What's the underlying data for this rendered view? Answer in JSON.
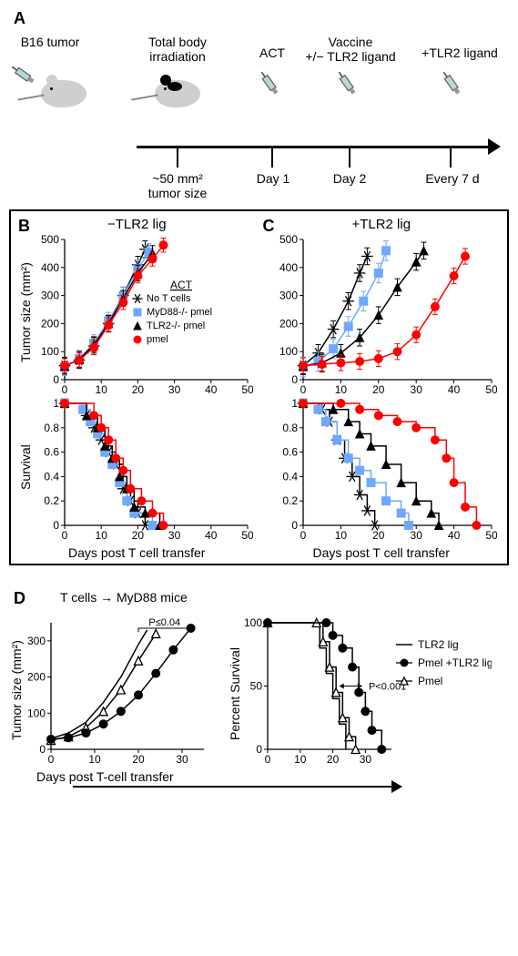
{
  "panelA": {
    "label": "A",
    "items": [
      {
        "title": "B16 tumor"
      },
      {
        "title": "Total body\nirradiation"
      },
      {
        "title": "ACT"
      },
      {
        "title": "Vaccine\n+/− TLR2 ligand"
      },
      {
        "title": "+TLR2 ligand"
      }
    ],
    "ticks": [
      "~50 mm²\ntumor size",
      "Day 1",
      "Day 2",
      "Every 7 d"
    ]
  },
  "panelB": {
    "label": "B",
    "title": "−TLR2 lig",
    "x_label": "Days post T cell transfer",
    "y_label_top": "Tumor size  (mm²)",
    "y_label_bot": "Survival",
    "x_ticks": [
      0,
      10,
      20,
      30,
      40,
      50
    ],
    "y_ticks_top": [
      0,
      100,
      200,
      300,
      400,
      500
    ],
    "y_ticks_bot": [
      0,
      0.2,
      0.4,
      0.6,
      0.8,
      1
    ],
    "legend": {
      "title": "ACT",
      "items": [
        {
          "label": "No T cells",
          "marker": "star",
          "color": "#000000"
        },
        {
          "label": "MyD88-/- pmel",
          "marker": "square",
          "color": "#6fa8ff"
        },
        {
          "label": "TLR2-/- pmel",
          "marker": "triangle",
          "color": "#000000"
        },
        {
          "label": "pmel",
          "marker": "circle",
          "color": "#ff0000"
        }
      ]
    },
    "tumor_series": {
      "no_t": {
        "color": "#000000",
        "marker": "star",
        "pts": [
          [
            0,
            50
          ],
          [
            4,
            70
          ],
          [
            8,
            120
          ],
          [
            12,
            200
          ],
          [
            16,
            300
          ],
          [
            20,
            410
          ],
          [
            22,
            465
          ]
        ],
        "err": 30
      },
      "myd88": {
        "color": "#6fa8ff",
        "marker": "square",
        "pts": [
          [
            0,
            45
          ],
          [
            4,
            75
          ],
          [
            8,
            130
          ],
          [
            12,
            210
          ],
          [
            16,
            300
          ],
          [
            20,
            395
          ],
          [
            23,
            455
          ]
        ],
        "err": 30
      },
      "tlr2": {
        "color": "#000000",
        "marker": "triangle",
        "pts": [
          [
            0,
            48
          ],
          [
            4,
            72
          ],
          [
            8,
            125
          ],
          [
            12,
            200
          ],
          [
            16,
            290
          ],
          [
            20,
            380
          ],
          [
            24,
            450
          ]
        ],
        "err": 28
      },
      "pmel": {
        "color": "#ff0000",
        "marker": "circle",
        "pts": [
          [
            0,
            50
          ],
          [
            4,
            70
          ],
          [
            8,
            115
          ],
          [
            12,
            195
          ],
          [
            16,
            275
          ],
          [
            20,
            370
          ],
          [
            24,
            430
          ],
          [
            27,
            480
          ]
        ],
        "err": 25
      }
    },
    "survival_series": {
      "no_t": {
        "color": "#000000",
        "marker": "star",
        "pts": [
          [
            0,
            1
          ],
          [
            6,
            0.9
          ],
          [
            8,
            0.8
          ],
          [
            10,
            0.7
          ],
          [
            12,
            0.6
          ],
          [
            14,
            0.5
          ],
          [
            16,
            0.3
          ],
          [
            18,
            0.2
          ],
          [
            20,
            0.1
          ],
          [
            22,
            0
          ]
        ]
      },
      "myd88": {
        "color": "#6fa8ff",
        "marker": "square",
        "pts": [
          [
            0,
            1
          ],
          [
            5,
            0.95
          ],
          [
            7,
            0.85
          ],
          [
            9,
            0.75
          ],
          [
            11,
            0.6
          ],
          [
            13,
            0.5
          ],
          [
            15,
            0.35
          ],
          [
            17,
            0.2
          ],
          [
            19,
            0.1
          ],
          [
            24,
            0
          ]
        ]
      },
      "tlr2": {
        "color": "#000000",
        "marker": "triangle",
        "pts": [
          [
            0,
            1
          ],
          [
            6,
            0.9
          ],
          [
            9,
            0.8
          ],
          [
            11,
            0.65
          ],
          [
            13,
            0.55
          ],
          [
            15,
            0.4
          ],
          [
            17,
            0.3
          ],
          [
            19,
            0.15
          ],
          [
            22,
            0.1
          ],
          [
            26,
            0
          ]
        ]
      },
      "pmel": {
        "color": "#ff0000",
        "marker": "circle",
        "pts": [
          [
            0,
            1
          ],
          [
            8,
            0.9
          ],
          [
            10,
            0.8
          ],
          [
            12,
            0.7
          ],
          [
            14,
            0.55
          ],
          [
            16,
            0.45
          ],
          [
            18,
            0.3
          ],
          [
            21,
            0.2
          ],
          [
            24,
            0.1
          ],
          [
            27,
            0
          ]
        ]
      }
    }
  },
  "panelC": {
    "label": "C",
    "title": "+TLR2 lig",
    "x_label": "Days post T cell transfer",
    "x_ticks": [
      0,
      10,
      20,
      30,
      40,
      50
    ],
    "y_ticks_top": [
      0,
      100,
      200,
      300,
      400,
      500
    ],
    "y_ticks_bot": [
      0,
      0.2,
      0.4,
      0.6,
      0.8,
      1
    ],
    "tumor_series": {
      "no_t": {
        "color": "#000000",
        "marker": "star",
        "pts": [
          [
            0,
            50
          ],
          [
            4,
            95
          ],
          [
            8,
            180
          ],
          [
            12,
            280
          ],
          [
            15,
            380
          ],
          [
            17,
            440
          ]
        ],
        "err": 30
      },
      "myd88": {
        "color": "#6fa8ff",
        "marker": "square",
        "pts": [
          [
            0,
            45
          ],
          [
            4,
            65
          ],
          [
            8,
            110
          ],
          [
            12,
            190
          ],
          [
            16,
            280
          ],
          [
            20,
            380
          ],
          [
            22,
            460
          ]
        ],
        "err": 35
      },
      "tlr2": {
        "color": "#000000",
        "marker": "triangle",
        "pts": [
          [
            0,
            48
          ],
          [
            5,
            60
          ],
          [
            10,
            95
          ],
          [
            15,
            150
          ],
          [
            20,
            230
          ],
          [
            25,
            330
          ],
          [
            30,
            420
          ],
          [
            32,
            460
          ]
        ],
        "err": 30
      },
      "pmel": {
        "color": "#ff0000",
        "marker": "circle",
        "pts": [
          [
            0,
            50
          ],
          [
            5,
            55
          ],
          [
            10,
            60
          ],
          [
            15,
            65
          ],
          [
            20,
            75
          ],
          [
            25,
            100
          ],
          [
            30,
            160
          ],
          [
            35,
            260
          ],
          [
            40,
            370
          ],
          [
            43,
            440
          ]
        ],
        "err": 28
      }
    },
    "survival_series": {
      "no_t": {
        "color": "#000000",
        "marker": "star",
        "pts": [
          [
            0,
            1
          ],
          [
            5,
            0.95
          ],
          [
            7,
            0.85
          ],
          [
            9,
            0.7
          ],
          [
            11,
            0.55
          ],
          [
            13,
            0.4
          ],
          [
            15,
            0.25
          ],
          [
            17,
            0.12
          ],
          [
            19,
            0
          ]
        ]
      },
      "myd88": {
        "color": "#6fa8ff",
        "marker": "square",
        "pts": [
          [
            0,
            1
          ],
          [
            4,
            0.95
          ],
          [
            6,
            0.85
          ],
          [
            9,
            0.7
          ],
          [
            12,
            0.55
          ],
          [
            15,
            0.45
          ],
          [
            18,
            0.35
          ],
          [
            22,
            0.2
          ],
          [
            26,
            0.1
          ],
          [
            28,
            0
          ]
        ]
      },
      "tlr2": {
        "color": "#000000",
        "marker": "triangle",
        "pts": [
          [
            0,
            1
          ],
          [
            8,
            0.95
          ],
          [
            12,
            0.85
          ],
          [
            15,
            0.75
          ],
          [
            18,
            0.65
          ],
          [
            22,
            0.5
          ],
          [
            26,
            0.35
          ],
          [
            30,
            0.2
          ],
          [
            34,
            0.1
          ],
          [
            36,
            0
          ]
        ]
      },
      "pmel": {
        "color": "#ff0000",
        "marker": "circle",
        "pts": [
          [
            0,
            1
          ],
          [
            10,
            1
          ],
          [
            15,
            0.95
          ],
          [
            20,
            0.9
          ],
          [
            25,
            0.85
          ],
          [
            30,
            0.8
          ],
          [
            35,
            0.7
          ],
          [
            38,
            0.55
          ],
          [
            40,
            0.35
          ],
          [
            43,
            0.15
          ],
          [
            46,
            0
          ]
        ]
      }
    }
  },
  "panelD": {
    "label": "D",
    "header": "T cells → MyD88 mice",
    "pvalue_tumor": "P≤0.04",
    "pvalue_surv": "P<0.001",
    "x_label": "Days post T-cell transfer",
    "y_label_left": "Tumor size  (mm²)",
    "y_label_right": "Percent Survival",
    "x_ticks_left": [
      0,
      10,
      20,
      30
    ],
    "y_ticks_left": [
      0,
      100,
      200,
      300
    ],
    "x_ticks_right": [
      0,
      10,
      20,
      30
    ],
    "y_ticks_right": [
      0,
      50,
      100
    ],
    "legend": [
      {
        "label": "TLR2 lig",
        "marker": "line",
        "color": "#000000"
      },
      {
        "label": "Pmel +TLR2 lig",
        "marker": "circle",
        "color": "#000000"
      },
      {
        "label": "Pmel",
        "marker": "open-triangle",
        "color": "#000000"
      }
    ],
    "tumor_series": {
      "tlr2lig": {
        "color": "#000000",
        "marker": "line",
        "pts": [
          [
            0,
            30
          ],
          [
            4,
            45
          ],
          [
            8,
            75
          ],
          [
            12,
            130
          ],
          [
            16,
            200
          ],
          [
            20,
            290
          ],
          [
            22,
            330
          ]
        ]
      },
      "pmel": {
        "color": "#000000",
        "marker": "open-triangle",
        "pts": [
          [
            0,
            25
          ],
          [
            4,
            35
          ],
          [
            8,
            60
          ],
          [
            12,
            105
          ],
          [
            16,
            165
          ],
          [
            20,
            245
          ],
          [
            24,
            320
          ]
        ]
      },
      "pmel_lig": {
        "color": "#000000",
        "marker": "circle",
        "pts": [
          [
            0,
            28
          ],
          [
            4,
            32
          ],
          [
            8,
            45
          ],
          [
            12,
            70
          ],
          [
            16,
            105
          ],
          [
            20,
            150
          ],
          [
            24,
            210
          ],
          [
            28,
            275
          ],
          [
            32,
            335
          ]
        ]
      }
    },
    "survival_series": {
      "tlr2lig": {
        "color": "#000000",
        "marker": "line",
        "pts": [
          [
            0,
            100
          ],
          [
            14,
            100
          ],
          [
            16,
            80
          ],
          [
            18,
            60
          ],
          [
            20,
            40
          ],
          [
            22,
            20
          ],
          [
            24,
            0
          ]
        ]
      },
      "pmel": {
        "color": "#000000",
        "marker": "open-triangle",
        "pts": [
          [
            0,
            100
          ],
          [
            15,
            100
          ],
          [
            17,
            85
          ],
          [
            19,
            65
          ],
          [
            21,
            45
          ],
          [
            23,
            25
          ],
          [
            25,
            10
          ],
          [
            27,
            0
          ]
        ]
      },
      "pmel_lig": {
        "color": "#000000",
        "marker": "circle",
        "pts": [
          [
            0,
            100
          ],
          [
            18,
            100
          ],
          [
            20,
            90
          ],
          [
            23,
            80
          ],
          [
            26,
            65
          ],
          [
            28,
            45
          ],
          [
            30,
            30
          ],
          [
            32,
            15
          ],
          [
            35,
            0
          ]
        ]
      }
    }
  },
  "style": {
    "marker_size": 4.5,
    "line_width": 1.5,
    "axis_color": "#000000",
    "font_size_axis": 12
  }
}
